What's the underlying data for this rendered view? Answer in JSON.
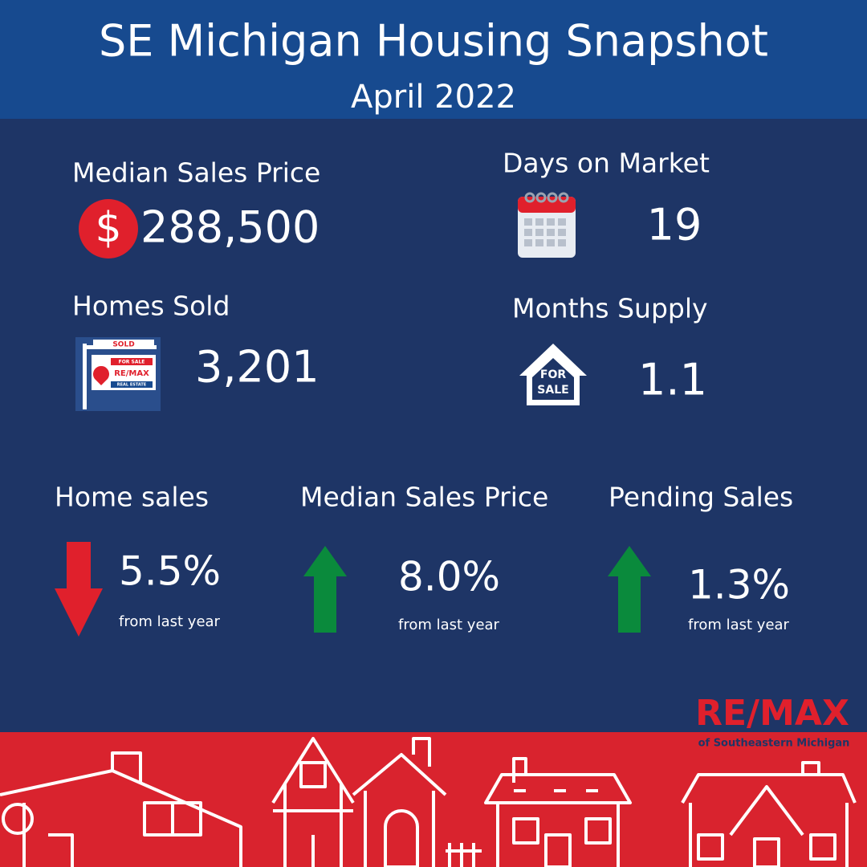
{
  "header": {
    "title": "SE Michigan Housing Snapshot",
    "subtitle": "April 2022"
  },
  "stats": [
    {
      "label": "Median Sales Price",
      "icon_text": "$",
      "value": "288,500"
    },
    {
      "label": "Days on Market",
      "value": "19"
    },
    {
      "label": "Homes Sold",
      "value": "3,201",
      "icon_texts": [
        "SOLD",
        "FOR SALE",
        "RE/MAX",
        "REAL ESTATE"
      ]
    },
    {
      "label": "Months Supply",
      "value": "1.1",
      "icon_texts": [
        "FOR",
        "SALE"
      ]
    }
  ],
  "changes": [
    {
      "label": "Home sales",
      "value": "5.5%",
      "note": "from last year",
      "direction": "down",
      "color": "#e0202c"
    },
    {
      "label": "Median Sales Price",
      "value": "8.0%",
      "note": "from last year",
      "direction": "up",
      "color": "#0a8a3c"
    },
    {
      "label": "Pending Sales",
      "value": "1.3%",
      "note": "from last year",
      "direction": "up",
      "color": "#0a8a3c"
    }
  ],
  "logo": {
    "name": "RE/MAX",
    "region": "of Southeastern Michigan"
  }
}
